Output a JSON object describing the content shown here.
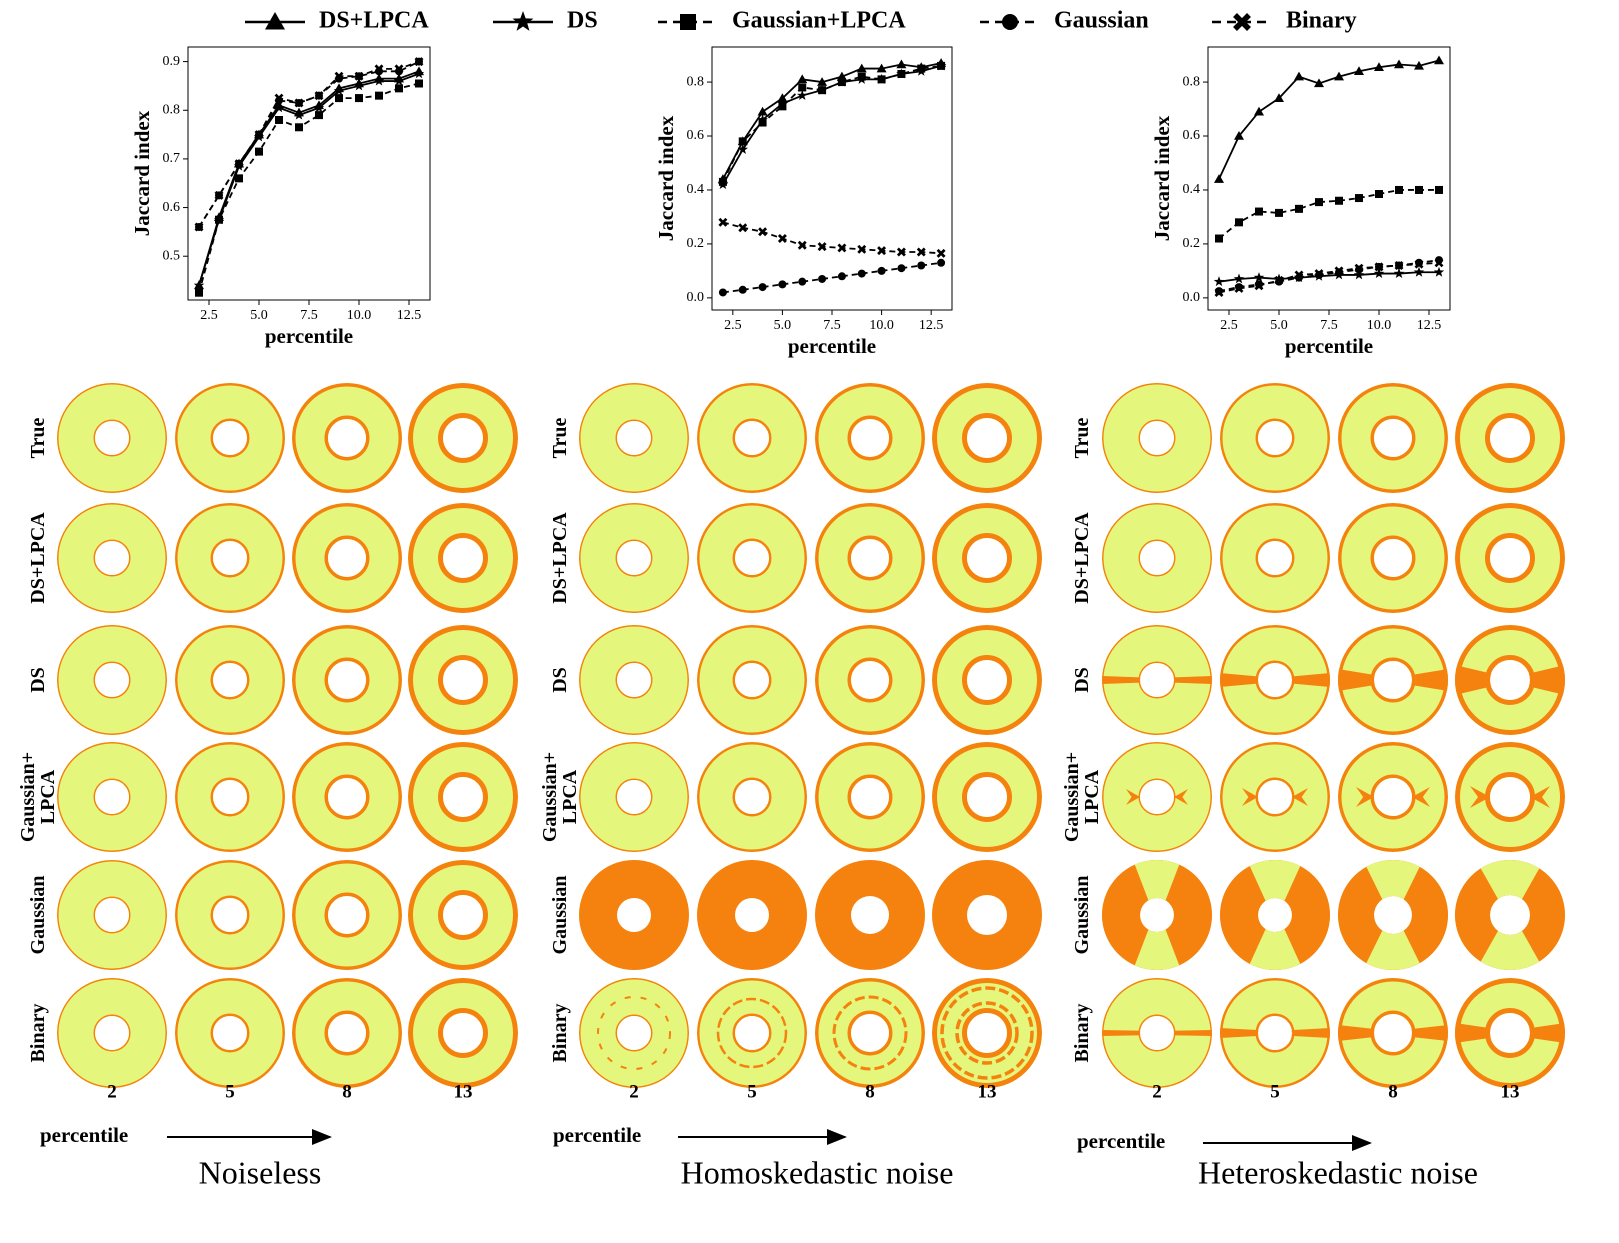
{
  "chart_data": [
    {
      "type": "line",
      "legend": "top",
      "xlabel": "percentile",
      "ylabel": "Jaccard index",
      "x": [
        2,
        3,
        4,
        5,
        6,
        7,
        8,
        9,
        10,
        11,
        12,
        13
      ],
      "xlim": [
        1.45,
        13.55
      ],
      "xticks": [
        2.5,
        {
          "value": 5,
          "label": "5.0"
        },
        7.5,
        {
          "value": 10,
          "label": "10.0"
        },
        12.5
      ],
      "ylim": [
        0.41,
        0.93
      ],
      "yticks": [
        0.5,
        0.6,
        0.7,
        0.8,
        0.9
      ],
      "series": [
        {
          "name": "DS+LPCA",
          "color": "#000000",
          "linestyle": "solid",
          "marker": "triangle",
          "values": [
            0.44,
            0.58,
            0.69,
            0.75,
            0.81,
            0.795,
            0.81,
            0.845,
            0.855,
            0.865,
            0.865,
            0.88
          ]
        },
        {
          "name": "DS",
          "color": "#000000",
          "linestyle": "solid",
          "marker": "star",
          "values": [
            0.44,
            0.575,
            0.685,
            0.745,
            0.805,
            0.79,
            0.805,
            0.84,
            0.85,
            0.86,
            0.86,
            0.875
          ]
        },
        {
          "name": "Gaussian+LPCA",
          "color": "#000000",
          "linestyle": "dashed",
          "marker": "square",
          "values": [
            0.425,
            0.575,
            0.66,
            0.715,
            0.78,
            0.765,
            0.79,
            0.825,
            0.825,
            0.83,
            0.845,
            0.855
          ]
        },
        {
          "name": "Gaussian",
          "color": "#000000",
          "linestyle": "dashed",
          "marker": "circle",
          "values": [
            0.56,
            0.625,
            0.69,
            0.75,
            0.82,
            0.815,
            0.83,
            0.865,
            0.87,
            0.88,
            0.88,
            0.9
          ]
        },
        {
          "name": "Binary",
          "color": "#000000",
          "linestyle": "dashed",
          "marker": "x",
          "values": [
            0.56,
            0.625,
            0.69,
            0.75,
            0.825,
            0.815,
            0.83,
            0.87,
            0.87,
            0.885,
            0.885,
            0.9
          ]
        }
      ]
    },
    {
      "type": "line",
      "xlabel": "percentile",
      "ylabel": "Jaccard index",
      "x": [
        2,
        3,
        4,
        5,
        6,
        7,
        8,
        9,
        10,
        11,
        12,
        13
      ],
      "xlim": [
        1.45,
        13.55
      ],
      "xticks": [
        2.5,
        {
          "value": 5,
          "label": "5.0"
        },
        7.5,
        {
          "value": 10,
          "label": "10.0"
        },
        12.5
      ],
      "ylim": [
        -0.045,
        0.93
      ],
      "yticks": [
        {
          "value": 0,
          "label": "0.0"
        },
        0.2,
        0.4,
        0.6,
        0.8
      ],
      "series": [
        {
          "name": "DS+LPCA",
          "color": "#000000",
          "linestyle": "solid",
          "marker": "triangle",
          "values": [
            0.44,
            0.58,
            0.69,
            0.74,
            0.81,
            0.8,
            0.82,
            0.85,
            0.85,
            0.865,
            0.855,
            0.87
          ]
        },
        {
          "name": "DS",
          "color": "#000000",
          "linestyle": "solid",
          "marker": "star",
          "values": [
            0.42,
            0.55,
            0.66,
            0.72,
            0.75,
            0.77,
            0.8,
            0.81,
            0.81,
            0.83,
            0.84,
            0.86
          ]
        },
        {
          "name": "Gaussian+LPCA",
          "color": "#000000",
          "linestyle": "dashed",
          "marker": "square",
          "values": [
            0.43,
            0.58,
            0.65,
            0.71,
            0.78,
            0.77,
            0.8,
            0.82,
            0.81,
            0.83,
            0.85,
            0.86
          ]
        },
        {
          "name": "Gaussian",
          "color": "#000000",
          "linestyle": "dashed",
          "marker": "circle",
          "values": [
            0.02,
            0.03,
            0.04,
            0.05,
            0.06,
            0.07,
            0.08,
            0.09,
            0.1,
            0.11,
            0.12,
            0.13
          ]
        },
        {
          "name": "Binary",
          "color": "#000000",
          "linestyle": "dashed",
          "marker": "x",
          "values": [
            0.28,
            0.26,
            0.245,
            0.22,
            0.195,
            0.19,
            0.185,
            0.18,
            0.175,
            0.17,
            0.17,
            0.165
          ]
        }
      ]
    },
    {
      "type": "line",
      "xlabel": "percentile",
      "ylabel": "Jaccard index",
      "x": [
        2,
        3,
        4,
        5,
        6,
        7,
        8,
        9,
        10,
        11,
        12,
        13
      ],
      "xlim": [
        1.45,
        13.55
      ],
      "xticks": [
        2.5,
        {
          "value": 5,
          "label": "5.0"
        },
        7.5,
        {
          "value": 10,
          "label": "10.0"
        },
        12.5
      ],
      "ylim": [
        -0.045,
        0.93
      ],
      "yticks": [
        {
          "value": 0,
          "label": "0.0"
        },
        0.2,
        0.4,
        0.6,
        0.8
      ],
      "series": [
        {
          "name": "DS+LPCA",
          "color": "#000000",
          "linestyle": "solid",
          "marker": "triangle",
          "values": [
            0.44,
            0.6,
            0.69,
            0.74,
            0.82,
            0.795,
            0.82,
            0.84,
            0.855,
            0.865,
            0.86,
            0.88
          ]
        },
        {
          "name": "DS",
          "color": "#000000",
          "linestyle": "solid",
          "marker": "star",
          "values": [
            0.06,
            0.07,
            0.075,
            0.07,
            0.075,
            0.08,
            0.085,
            0.085,
            0.09,
            0.09,
            0.095,
            0.095
          ]
        },
        {
          "name": "Gaussian+LPCA",
          "color": "#000000",
          "linestyle": "dashed",
          "marker": "square",
          "values": [
            0.22,
            0.28,
            0.32,
            0.315,
            0.33,
            0.355,
            0.36,
            0.37,
            0.385,
            0.4,
            0.4,
            0.4
          ]
        },
        {
          "name": "Gaussian",
          "color": "#000000",
          "linestyle": "dashed",
          "marker": "circle",
          "values": [
            0.025,
            0.04,
            0.05,
            0.06,
            0.075,
            0.085,
            0.095,
            0.105,
            0.115,
            0.12,
            0.13,
            0.14
          ]
        },
        {
          "name": "Binary",
          "color": "#000000",
          "linestyle": "dashed",
          "marker": "x",
          "values": [
            0.02,
            0.035,
            0.045,
            0.065,
            0.085,
            0.09,
            0.1,
            0.11,
            0.115,
            0.12,
            0.125,
            0.13
          ]
        }
      ]
    }
  ],
  "panels": [
    {
      "title": "Noiseless",
      "row_labels": [
        "True",
        "DS+LPCA",
        "DS",
        "Gaussian+\nLPCA",
        "Gaussian",
        "Binary"
      ],
      "column_labels": [
        2,
        5,
        8,
        13
      ],
      "x_label": "percentile"
    },
    {
      "title": "Homoskedastic noise",
      "row_labels": [
        "True",
        "DS+LPCA",
        "DS",
        "Gaussian+\nLPCA",
        "Gaussian",
        "Binary"
      ],
      "column_labels": [
        2,
        5,
        8,
        13
      ],
      "x_label": "percentile"
    },
    {
      "title": "Heteroskedastic noise",
      "row_labels": [
        "True",
        "DS+LPCA",
        "DS",
        "Gaussian+\nLPCA",
        "Gaussian",
        "Binary"
      ],
      "column_labels": [
        2,
        5,
        8,
        13
      ],
      "x_label": "percentile"
    }
  ]
}
